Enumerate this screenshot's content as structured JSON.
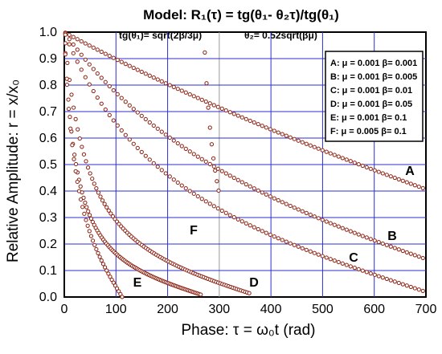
{
  "chart_data": {
    "type": "scatter",
    "title": "Model: R₁(τ) = tg(θ₁- θ₂τ)/tg(θ₁)",
    "subtitle_left": "tg(θ₁)= sqrt(2β/3μ)",
    "subtitle_right": "θ₂= 0.52sqrt(βμ)",
    "xlabel": "Phase: τ = ω₀t   (rad)",
    "ylabel": "Relative Amplitude:  r = x/x₀",
    "xlim": [
      0,
      700
    ],
    "ylim": [
      0,
      1.0
    ],
    "x_ticks": [
      0,
      100,
      200,
      300,
      400,
      500,
      600,
      700
    ],
    "y_ticks": [
      0.0,
      0.1,
      0.2,
      0.3,
      0.4,
      0.5,
      0.6,
      0.7,
      0.8,
      0.9,
      1.0
    ],
    "grid": true,
    "legend_position": "top-right",
    "series": [
      {
        "name": "A: μ = 0.001 β= 0.001",
        "label": "A",
        "mu": 0.001,
        "beta": 0.001,
        "x_end": 700
      },
      {
        "name": "B: μ = 0.001 β= 0.005",
        "label": "B",
        "mu": 0.001,
        "beta": 0.005,
        "x_end": 700
      },
      {
        "name": "C: μ = 0.001 β= 0.01",
        "label": "C",
        "mu": 0.001,
        "beta": 0.01,
        "x_end": 700
      },
      {
        "name": "D: μ = 0.001 β= 0.05",
        "label": "D",
        "mu": 0.001,
        "beta": 0.05,
        "x_end": 360
      },
      {
        "name": "E: μ = 0.001 β= 0.1",
        "label": "E",
        "mu": 0.001,
        "beta": 0.1,
        "x_end": 265
      },
      {
        "name": "F: μ = 0.005 β= 0.1",
        "label": "F",
        "mu": 0.005,
        "beta": 0.1,
        "x_end": 300
      }
    ]
  }
}
